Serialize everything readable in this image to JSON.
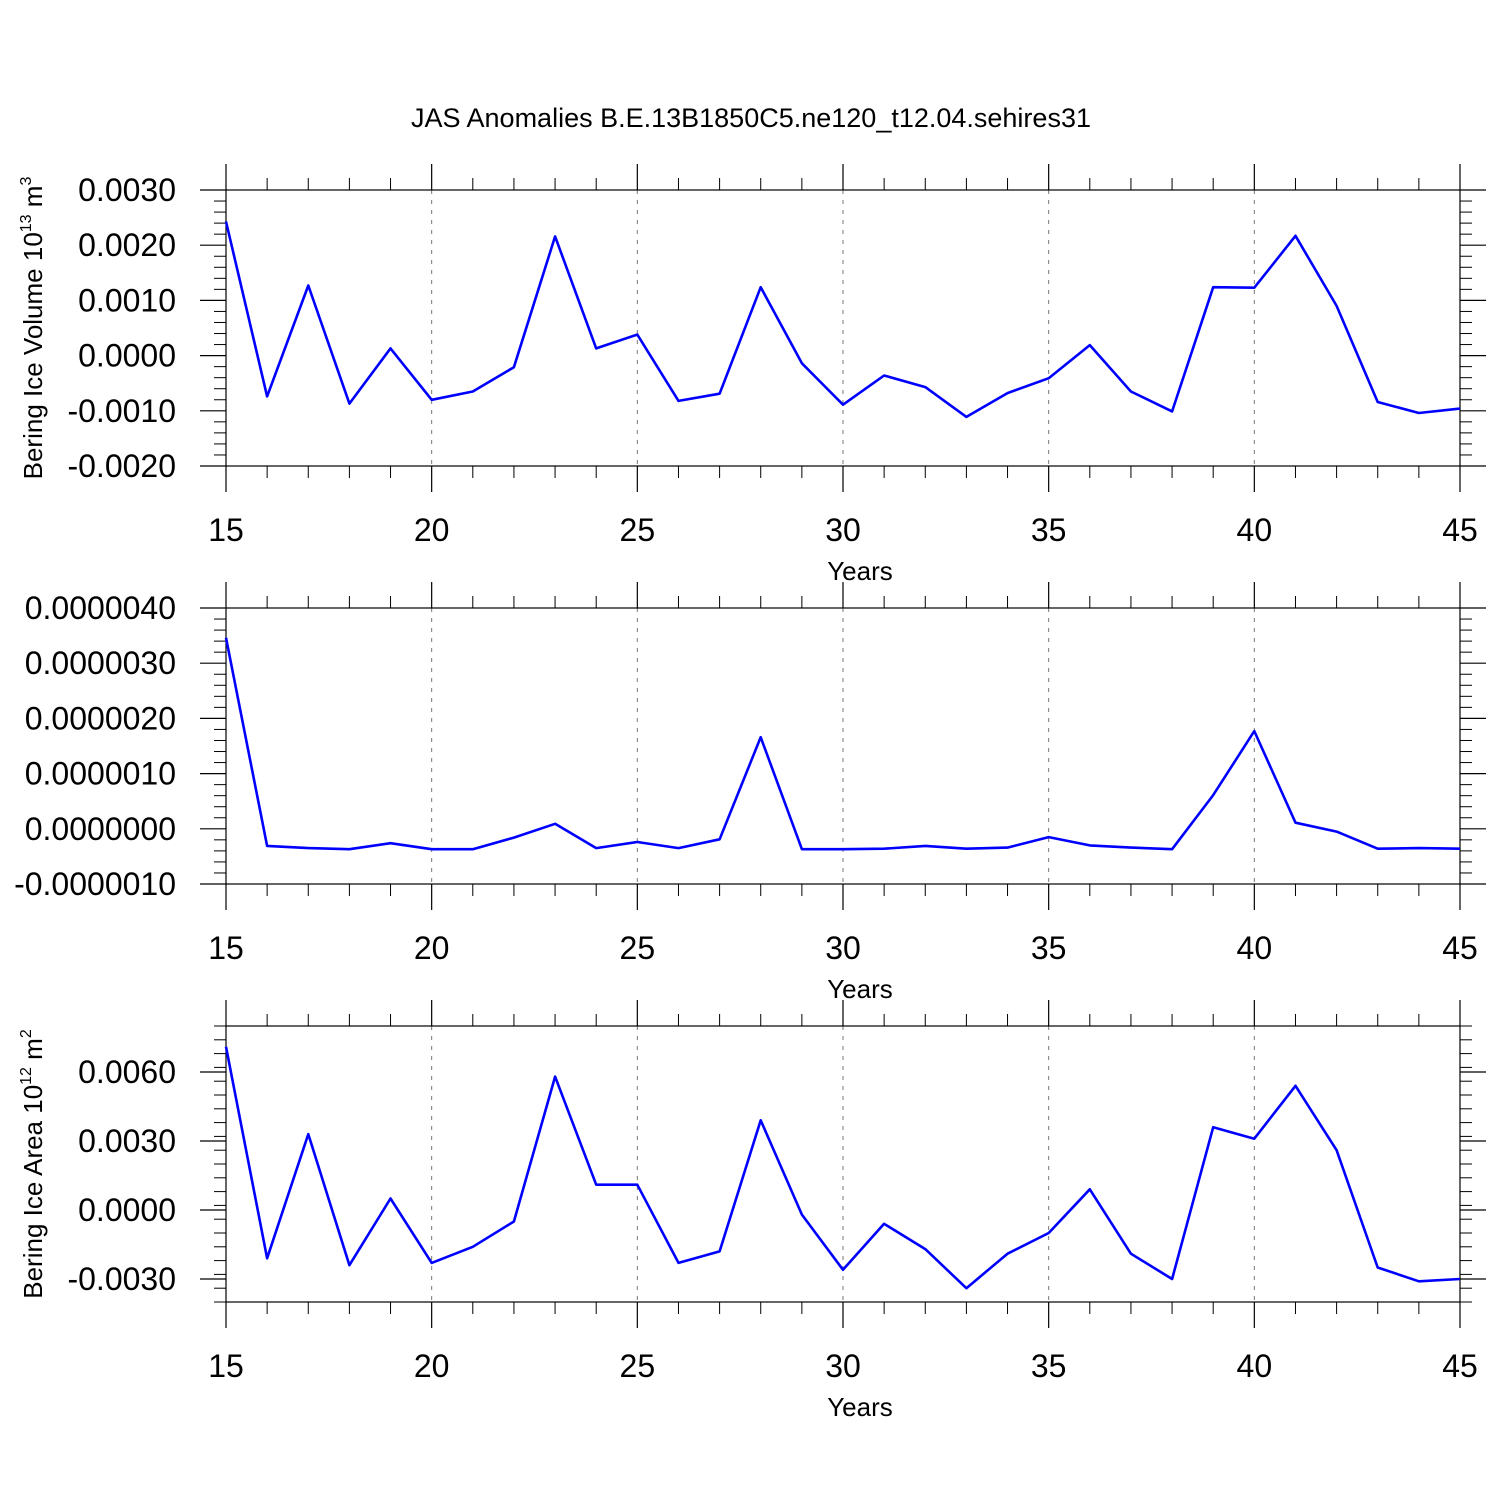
{
  "title": "JAS Anomalies B.E.13B1850C5.ne120_t12.04.sehires31",
  "line_color": "#0000ff",
  "chart_data": [
    {
      "type": "line",
      "ylabel": {
        "text": "Bering Ice Volume 10",
        "sup": "13",
        "unit": " m",
        "unit_sup": "3"
      },
      "xlabel": "Years",
      "xlim": [
        15,
        45
      ],
      "ylim": [
        -0.002,
        0.003
      ],
      "x_ticks": [
        "15",
        "20",
        "25",
        "30",
        "35",
        "40",
        "45"
      ],
      "y_ticks": [
        {
          "v": 0.003,
          "label": "0.0030"
        },
        {
          "v": 0.002,
          "label": "0.0020"
        },
        {
          "v": 0.001,
          "label": "0.0010"
        },
        {
          "v": 0.0,
          "label": "0.0000"
        },
        {
          "v": -0.001,
          "label": "-0.0010"
        },
        {
          "v": -0.002,
          "label": "-0.0020"
        }
      ],
      "x_grid": [
        20,
        25,
        30,
        35,
        40
      ],
      "x": [
        15,
        16,
        17,
        18,
        19,
        20,
        21,
        22,
        23,
        24,
        25,
        26,
        27,
        28,
        29,
        30,
        31,
        32,
        33,
        34,
        35,
        36,
        37,
        38,
        39,
        40,
        41,
        42,
        43,
        44,
        45
      ],
      "y": [
        0.00243,
        -0.00074,
        0.00127,
        -0.00087,
        0.00013,
        -0.0008,
        -0.00065,
        -0.00021,
        0.00216,
        0.00013,
        0.00038,
        -0.00082,
        -0.00069,
        0.00124,
        -0.00014,
        -0.00089,
        -0.00036,
        -0.00057,
        -0.00111,
        -0.00068,
        -0.00041,
        0.00019,
        -0.00065,
        -0.00101,
        0.00124,
        0.00123,
        0.00217,
        0.0009,
        -0.00084,
        -0.00104,
        -0.00096
      ]
    },
    {
      "type": "line",
      "ylabel": null,
      "xlabel": "Years",
      "xlim": [
        15,
        45
      ],
      "ylim": [
        -1e-06,
        4e-06
      ],
      "x_ticks": [
        "15",
        "20",
        "25",
        "30",
        "35",
        "40",
        "45"
      ],
      "y_ticks": [
        {
          "v": 4e-06,
          "label": "0.0000040"
        },
        {
          "v": 3e-06,
          "label": "0.0000030"
        },
        {
          "v": 2e-06,
          "label": "0.0000020"
        },
        {
          "v": 1e-06,
          "label": "0.0000010"
        },
        {
          "v": 0.0,
          "label": "0.0000000"
        },
        {
          "v": -1e-06,
          "label": "-0.0000010"
        }
      ],
      "x_grid": [
        20,
        25,
        30,
        35,
        40
      ],
      "x": [
        15,
        16,
        17,
        18,
        19,
        20,
        21,
        22,
        23,
        24,
        25,
        26,
        27,
        28,
        29,
        30,
        31,
        32,
        33,
        34,
        35,
        36,
        37,
        38,
        39,
        40,
        41,
        42,
        43,
        44,
        45
      ],
      "y": [
        3.46e-06,
        -3.1e-07,
        -3.5e-07,
        -3.7e-07,
        -2.6e-07,
        -3.7e-07,
        -3.7e-07,
        -1.6e-07,
        9e-08,
        -3.5e-07,
        -2.4e-07,
        -3.5e-07,
        -1.9e-07,
        1.66e-06,
        -3.7e-07,
        -3.7e-07,
        -3.6e-07,
        -3.1e-07,
        -3.6e-07,
        -3.4e-07,
        -1.5e-07,
        -3e-07,
        -3.4e-07,
        -3.7e-07,
        6.1e-07,
        1.77e-06,
        1.1e-07,
        -5e-08,
        -3.6e-07,
        -3.5e-07,
        -3.6e-07
      ]
    },
    {
      "type": "line",
      "ylabel": {
        "text": "Bering Ice Area 10",
        "sup": "12",
        "unit": " m",
        "unit_sup": "2"
      },
      "xlabel": "Years",
      "xlim": [
        15,
        45
      ],
      "ylim": [
        -0.004,
        0.008
      ],
      "x_ticks": [
        "15",
        "20",
        "25",
        "30",
        "35",
        "40",
        "45"
      ],
      "y_ticks": [
        {
          "v": 0.006,
          "label": "0.0060"
        },
        {
          "v": 0.003,
          "label": "0.0030"
        },
        {
          "v": 0.0,
          "label": "0.0000"
        },
        {
          "v": -0.003,
          "label": "-0.0030"
        }
      ],
      "x_grid": [
        20,
        25,
        30,
        35,
        40
      ],
      "x": [
        15,
        16,
        17,
        18,
        19,
        20,
        21,
        22,
        23,
        24,
        25,
        26,
        27,
        28,
        29,
        30,
        31,
        32,
        33,
        34,
        35,
        36,
        37,
        38,
        39,
        40,
        41,
        42,
        43,
        44,
        45
      ],
      "y": [
        0.0071,
        -0.0021,
        0.0033,
        -0.0024,
        0.0005,
        -0.0023,
        -0.0016,
        -0.0005,
        0.0058,
        0.0011,
        0.0011,
        -0.0023,
        -0.0018,
        0.0039,
        -0.0002,
        -0.0026,
        -0.0006,
        -0.0017,
        -0.0034,
        -0.0019,
        -0.001,
        0.0009,
        -0.0019,
        -0.003,
        0.0036,
        0.0031,
        0.0054,
        0.0026,
        -0.0025,
        -0.0031,
        -0.003
      ]
    }
  ]
}
